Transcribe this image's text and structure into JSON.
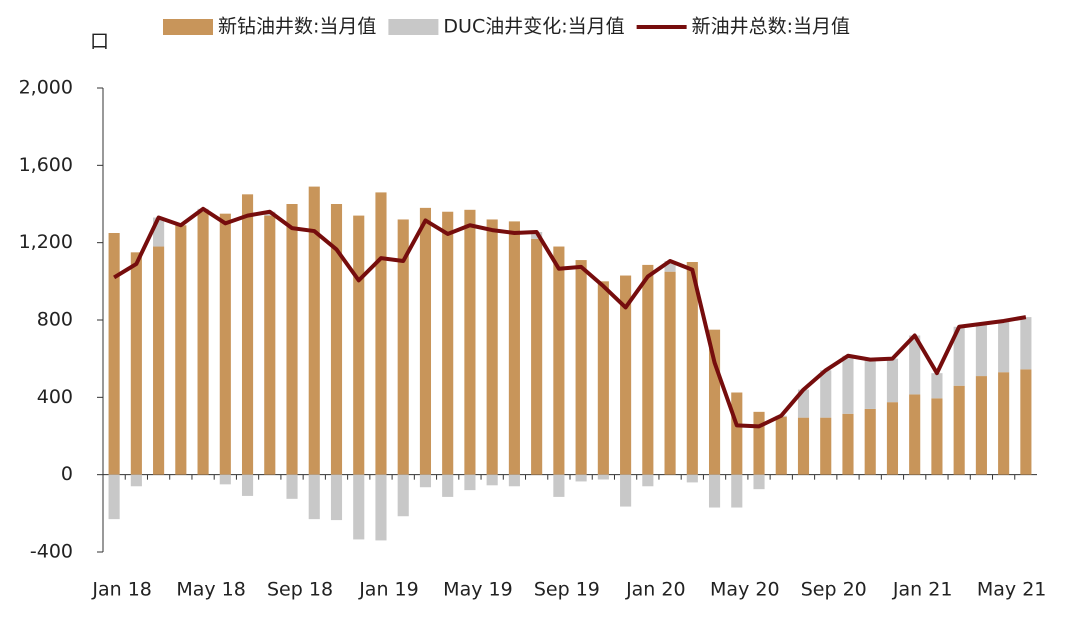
{
  "chart_data": {
    "type": "bar-line",
    "y_label": "口",
    "categories": [
      "Jan 18",
      null,
      null,
      null,
      "May 18",
      null,
      null,
      null,
      "Sep 18",
      null,
      null,
      null,
      "Jan 19",
      null,
      null,
      null,
      "May 19",
      null,
      null,
      null,
      "Sep 19",
      null,
      null,
      null,
      "Jan 20",
      null,
      null,
      null,
      "May 20",
      null,
      null,
      null,
      "Sep 20",
      null,
      null,
      null,
      "Jan 21",
      null,
      null,
      null,
      "May 21",
      null
    ],
    "series": [
      {
        "name": "新钻油井数:当月值",
        "color": "#c8955a",
        "kind": "bar",
        "values": [
          1250,
          1150,
          1180,
          1290,
          1360,
          1350,
          1450,
          1340,
          1400,
          1490,
          1400,
          1340,
          1460,
          1320,
          1380,
          1360,
          1370,
          1320,
          1310,
          1220,
          1180,
          1110,
          1000,
          1030,
          1085,
          1050,
          1100,
          750,
          425,
          325,
          300,
          295,
          295,
          315,
          340,
          375,
          415,
          395,
          460,
          510,
          530,
          545
        ]
      },
      {
        "name": "DUC油井变化:当月值",
        "color": "#c8c8c8",
        "kind": "bar",
        "stack": true,
        "values": [
          -230,
          -60,
          150,
          0,
          15,
          -50,
          -110,
          20,
          -125,
          -230,
          -235,
          -335,
          -340,
          -215,
          -65,
          -115,
          -80,
          -55,
          -60,
          35,
          -115,
          -35,
          -25,
          -165,
          -60,
          55,
          -40,
          -170,
          -170,
          -75,
          5,
          145,
          245,
          300,
          255,
          225,
          305,
          130,
          305,
          270,
          265,
          270
        ]
      },
      {
        "name": "新油井总数:当月值",
        "color": "#760d0d",
        "kind": "line",
        "values": [
          1020,
          1090,
          1330,
          1290,
          1375,
          1300,
          1340,
          1360,
          1275,
          1260,
          1165,
          1005,
          1120,
          1105,
          1315,
          1245,
          1290,
          1265,
          1250,
          1255,
          1065,
          1075,
          975,
          865,
          1025,
          1105,
          1060,
          580,
          255,
          250,
          305,
          440,
          540,
          615,
          595,
          600,
          720,
          525,
          765,
          780,
          795,
          815
        ]
      }
    ],
    "ylim": [
      -400,
      2000
    ],
    "yticks": [
      -400,
      0,
      400,
      800,
      {
        "value": 1200,
        "label": "1,200"
      },
      {
        "value": 1600,
        "label": "1,600"
      },
      {
        "value": 2000,
        "label": "2,000"
      }
    ],
    "legend": "top"
  }
}
